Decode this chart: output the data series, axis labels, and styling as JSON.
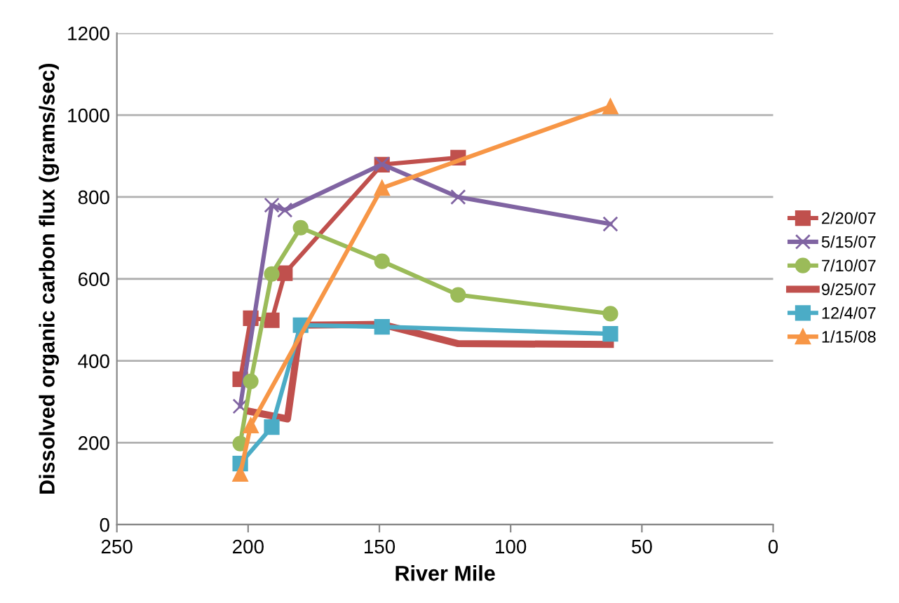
{
  "chart_data": {
    "type": "line",
    "xlabel": "River Mile",
    "ylabel": "Dissolved organic carbon flux (grams/sec)",
    "xlim": [
      250,
      0
    ],
    "xticks": [
      250,
      200,
      150,
      100,
      50,
      0
    ],
    "ylim": [
      0,
      1200
    ],
    "yticks": [
      0,
      200,
      400,
      600,
      800,
      1000,
      1200
    ],
    "grid": "y",
    "legend": "right",
    "series": [
      {
        "name": "2/20/07",
        "color": "#c0504d",
        "marker": "square",
        "x": [
          203,
          199,
          191,
          186,
          149,
          120
        ],
        "values": [
          355,
          504,
          499,
          614,
          879,
          896
        ]
      },
      {
        "name": "5/15/07",
        "color": "#8064a2",
        "marker": "cross",
        "x": [
          203,
          191,
          186,
          149,
          120,
          62
        ],
        "values": [
          289,
          780,
          768,
          880,
          800,
          734
        ]
      },
      {
        "name": "7/10/07",
        "color": "#9bbb59",
        "marker": "circle",
        "x": [
          203,
          199,
          191,
          180,
          149,
          120,
          62
        ],
        "values": [
          198,
          350,
          612,
          725,
          643,
          561,
          515
        ]
      },
      {
        "name": "9/25/07",
        "color": "#c0504d",
        "marker": "none",
        "x": [
          199,
          185,
          180,
          149,
          120,
          62
        ],
        "values": [
          276,
          258,
          487,
          489,
          442,
          440
        ]
      },
      {
        "name": "12/4/07",
        "color": "#4bacc6",
        "marker": "square",
        "x": [
          203,
          191,
          180,
          149,
          62
        ],
        "values": [
          149,
          238,
          487,
          483,
          466
        ]
      },
      {
        "name": "1/15/08",
        "color": "#f79646",
        "marker": "triangle",
        "x": [
          203,
          199,
          149,
          62
        ],
        "values": [
          124,
          242,
          822,
          1021
        ]
      }
    ]
  }
}
